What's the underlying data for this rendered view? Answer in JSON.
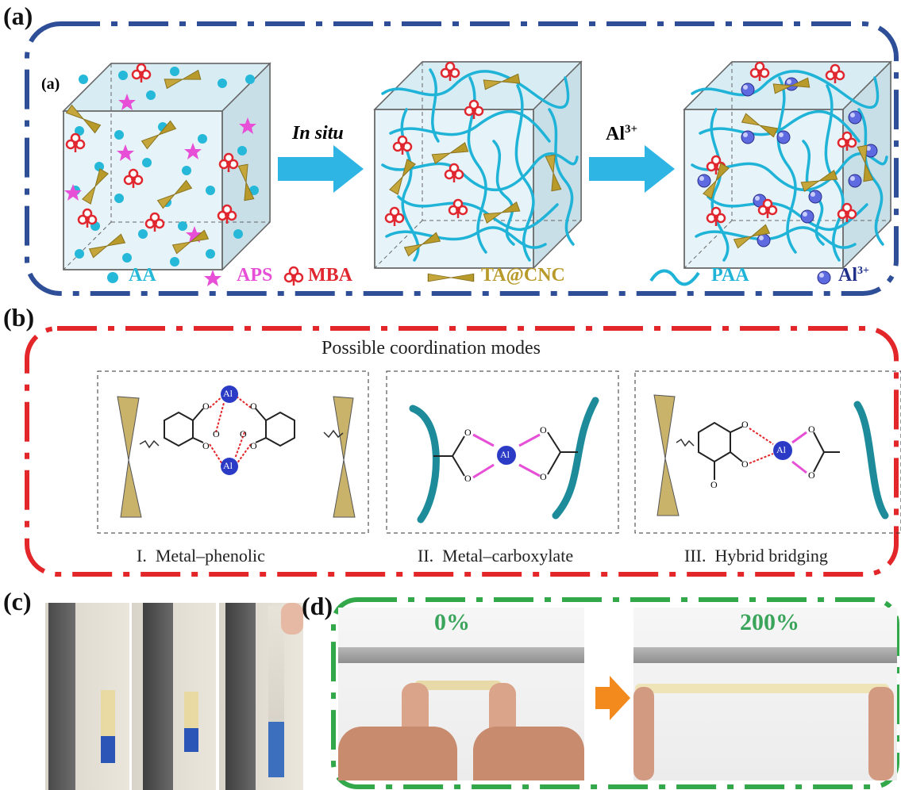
{
  "panels": {
    "a": {
      "label": "(a)",
      "inner_label": "(a)",
      "arrow1_label": "In situ",
      "arrow2_label": "Al",
      "arrow2_sup": "3+",
      "legend": [
        {
          "name": "AA",
          "color": "#26b8d8"
        },
        {
          "name": "APS",
          "color": "#e64fd6"
        },
        {
          "name": "MBA",
          "color": "#e0272f"
        },
        {
          "name": "TA@CNC",
          "color": "#b79a2a"
        },
        {
          "name": "PAA",
          "color": "#1fb3d8"
        },
        {
          "name": "Al",
          "sup": "3+",
          "color": "#1f2f8a"
        }
      ],
      "frame_color": "#2e4f98"
    },
    "b": {
      "label": "(b)",
      "title": "Possible coordination modes",
      "modes": [
        {
          "caption": "I.  Metal–phenolic"
        },
        {
          "caption": "II.  Metal–carboxylate"
        },
        {
          "caption": "III.  Hybrid bridging"
        }
      ],
      "atom_label": "Al",
      "oxygen_label": "O",
      "frame_color": "#e3262a"
    },
    "c": {
      "label": "(c)"
    },
    "d": {
      "label": "(d)",
      "strain_left": "0%",
      "strain_right": "200%",
      "strain_color": "#3aa45a",
      "frame_color": "#33a84a",
      "arrow_color": "#f28a1e"
    }
  }
}
